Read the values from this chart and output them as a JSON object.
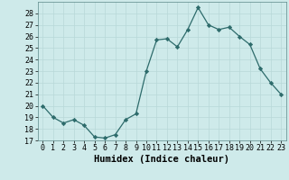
{
  "x": [
    0,
    1,
    2,
    3,
    4,
    5,
    6,
    7,
    8,
    9,
    10,
    11,
    12,
    13,
    14,
    15,
    16,
    17,
    18,
    19,
    20,
    21,
    22,
    23
  ],
  "y": [
    20,
    19,
    18.5,
    18.8,
    18.3,
    17.3,
    17.2,
    17.5,
    18.8,
    19.3,
    23.0,
    25.7,
    25.8,
    25.1,
    26.6,
    28.5,
    27.0,
    26.6,
    26.8,
    26.0,
    25.3,
    23.2,
    22.0,
    21.0
  ],
  "xlabel": "Humidex (Indice chaleur)",
  "xlim": [
    -0.5,
    23.5
  ],
  "ylim": [
    17,
    29
  ],
  "yticks": [
    17,
    18,
    19,
    20,
    21,
    22,
    23,
    24,
    25,
    26,
    27,
    28
  ],
  "xticks": [
    0,
    1,
    2,
    3,
    4,
    5,
    6,
    7,
    8,
    9,
    10,
    11,
    12,
    13,
    14,
    15,
    16,
    17,
    18,
    19,
    20,
    21,
    22,
    23
  ],
  "line_color": "#2d6b6b",
  "marker": "D",
  "marker_size": 2.2,
  "bg_color": "#ceeaea",
  "grid_color": "#b8d8d8",
  "tick_fontsize": 6,
  "xlabel_fontsize": 7.5,
  "linewidth": 0.9
}
